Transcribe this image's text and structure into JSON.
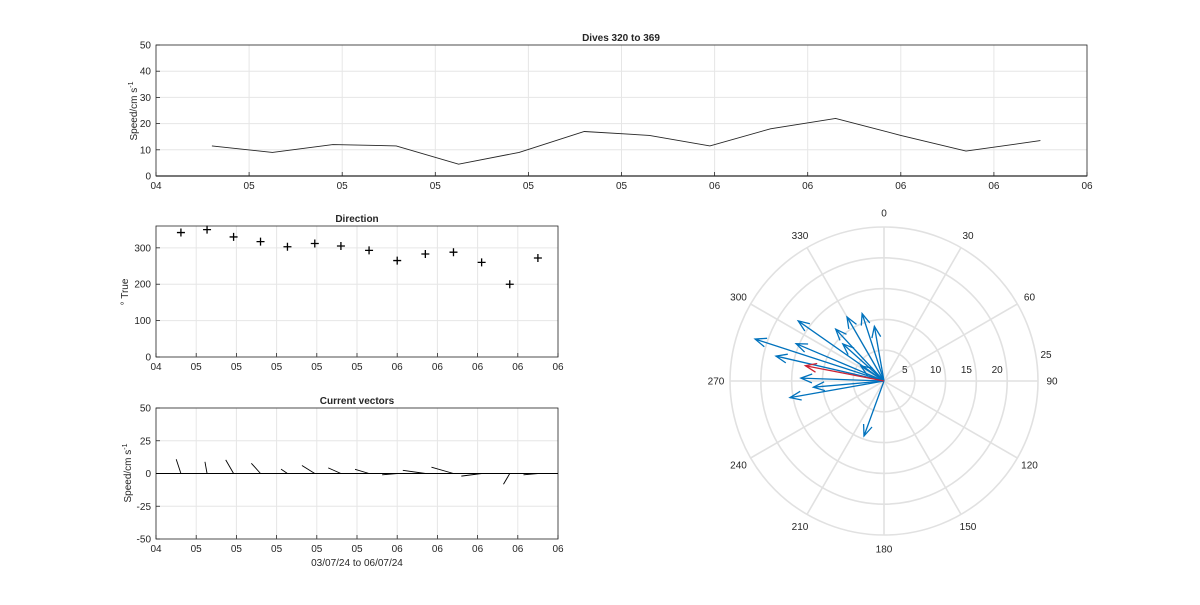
{
  "chart_data": [
    {
      "type": "line",
      "title": "Dives 320 to 369",
      "ylabel": "Speed/cm s",
      "ylabel_sup": "-1",
      "ylim": [
        0,
        50
      ],
      "yticks": [
        0,
        10,
        20,
        30,
        40,
        50
      ],
      "xlim": [
        0,
        1
      ],
      "xtick_labels": [
        "04",
        "05",
        "05",
        "05",
        "05",
        "05",
        "06",
        "06",
        "06",
        "06",
        "06"
      ],
      "x": [
        0.06,
        0.125,
        0.19,
        0.258,
        0.325,
        0.39,
        0.46,
        0.53,
        0.595,
        0.66,
        0.73,
        0.8,
        0.87,
        0.95
      ],
      "values": [
        11.5,
        9,
        12,
        11.5,
        4.5,
        9,
        17,
        15.5,
        11.5,
        18,
        22,
        15.5,
        9.5,
        13.5
      ],
      "grid": true,
      "color": "#262626"
    },
    {
      "type": "scatter",
      "title": "Direction",
      "ylabel": "° True",
      "ylim": [
        0,
        360
      ],
      "yticks": [
        0,
        100,
        200,
        300
      ],
      "xlim": [
        0,
        1
      ],
      "xtick_labels": [
        "04",
        "05",
        "05",
        "05",
        "05",
        "05",
        "06",
        "06",
        "06",
        "06",
        "06"
      ],
      "x": [
        0.062,
        0.127,
        0.193,
        0.26,
        0.327,
        0.395,
        0.46,
        0.53,
        0.6,
        0.67,
        0.74,
        0.81,
        0.88,
        0.95
      ],
      "values": [
        342,
        350,
        330,
        317,
        303,
        312,
        305,
        293,
        265,
        283,
        288,
        260,
        200,
        272
      ],
      "marker": "+",
      "grid": true
    },
    {
      "type": "quiver",
      "title": "Current vectors",
      "ylabel": "Speed/cm s",
      "ylabel_sup": "-1",
      "xlabel": "03/07/24 to 06/07/24",
      "ylim": [
        -50,
        50
      ],
      "yticks": [
        -50,
        -25,
        0,
        25,
        50
      ],
      "xlim": [
        0,
        1
      ],
      "xtick_labels": [
        "04",
        "05",
        "05",
        "05",
        "05",
        "05",
        "06",
        "06",
        "06",
        "06",
        "06"
      ],
      "vectors": [
        {
          "x": 0.062,
          "u": -3.6,
          "v": 10.9
        },
        {
          "x": 0.127,
          "u": -1.6,
          "v": 8.9
        },
        {
          "x": 0.193,
          "u": -6.0,
          "v": 10.4
        },
        {
          "x": 0.26,
          "u": -7.0,
          "v": 7.8
        },
        {
          "x": 0.327,
          "u": -4.9,
          "v": 3.3
        },
        {
          "x": 0.395,
          "u": -9.8,
          "v": 6.1
        },
        {
          "x": 0.46,
          "u": -9.7,
          "v": 4.3
        },
        {
          "x": 0.53,
          "u": -10.7,
          "v": 3.2
        },
        {
          "x": 0.6,
          "u": -11.5,
          "v": -1.0
        },
        {
          "x": 0.67,
          "u": -17.2,
          "v": 2.4
        },
        {
          "x": 0.74,
          "u": -16.8,
          "v": 4.8
        },
        {
          "x": 0.81,
          "u": -15.5,
          "v": -2.0
        },
        {
          "x": 0.88,
          "u": -4.8,
          "v": -8.2
        },
        {
          "x": 0.95,
          "u": -11.0,
          "v": -1.0
        }
      ],
      "grid": true
    },
    {
      "type": "polar",
      "theta_zero": "top",
      "theta_direction": "clockwise",
      "theta_ticks": [
        0,
        30,
        60,
        90,
        120,
        150,
        180,
        210,
        240,
        270,
        300,
        330
      ],
      "r_ticks": [
        5,
        10,
        15,
        20,
        25
      ],
      "rlim": [
        0,
        25
      ],
      "series": [
        {
          "color": "#0072bd",
          "vectors": [
            {
              "dir": 342,
              "mag": 11.5
            },
            {
              "dir": 350,
              "mag": 9
            },
            {
              "dir": 330,
              "mag": 12
            },
            {
              "dir": 317,
              "mag": 11.5
            },
            {
              "dir": 303,
              "mag": 4.5
            },
            {
              "dir": 312,
              "mag": 9
            },
            {
              "dir": 305,
              "mag": 17
            },
            {
              "dir": 293,
              "mag": 15.5
            },
            {
              "dir": 265,
              "mag": 11.5
            },
            {
              "dir": 283,
              "mag": 18
            },
            {
              "dir": 288,
              "mag": 22
            },
            {
              "dir": 260,
              "mag": 15.5
            },
            {
              "dir": 200,
              "mag": 9.5
            },
            {
              "dir": 272,
              "mag": 13.5
            }
          ]
        },
        {
          "color": "#cc2233",
          "vectors": [
            {
              "dir": 281,
              "mag": 13
            }
          ]
        }
      ]
    }
  ]
}
